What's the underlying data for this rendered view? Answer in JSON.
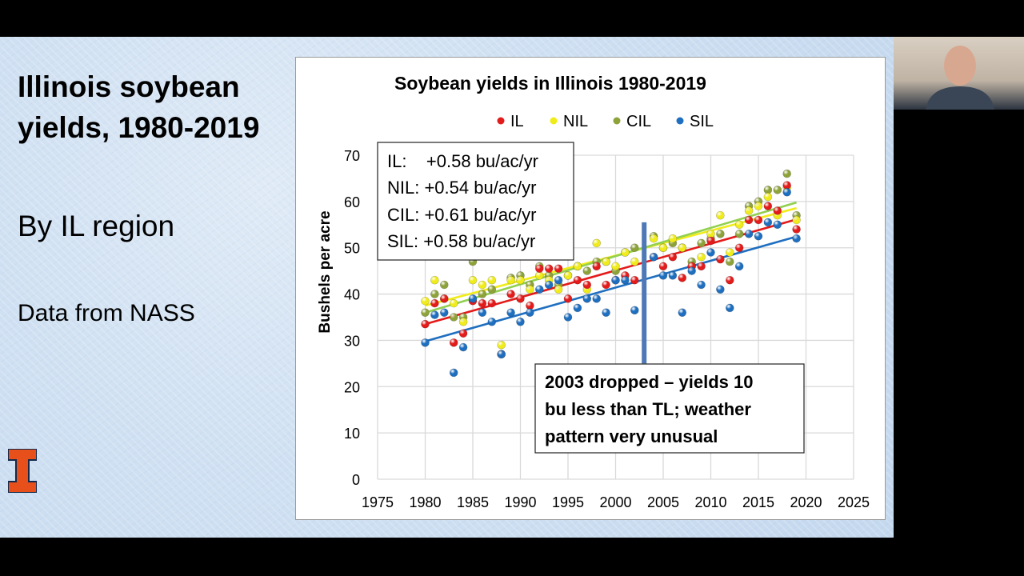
{
  "slide": {
    "title": "Illinois soybean yields, 1980-2019",
    "subtitle": "By IL region",
    "source": "Data from NASS",
    "logo_text": "I"
  },
  "chart_data": {
    "type": "scatter",
    "title": "Soybean yields in Illinois 1980-2019",
    "xlabel": "",
    "ylabel": "Bushels per acre",
    "xlim": [
      1975,
      2025
    ],
    "ylim": [
      0,
      70
    ],
    "xticks": [
      1975,
      1980,
      1985,
      1990,
      1995,
      2000,
      2005,
      2010,
      2015,
      2020,
      2025
    ],
    "yticks": [
      0,
      10,
      20,
      30,
      40,
      50,
      60,
      70
    ],
    "grid": true,
    "legend_position": "top",
    "x": [
      1980,
      1981,
      1982,
      1983,
      1984,
      1985,
      1986,
      1987,
      1988,
      1989,
      1990,
      1991,
      1992,
      1993,
      1994,
      1995,
      1996,
      1997,
      1998,
      1999,
      2000,
      2001,
      2002,
      2003,
      2004,
      2005,
      2006,
      2007,
      2008,
      2009,
      2010,
      2011,
      2012,
      2013,
      2014,
      2015,
      2016,
      2017,
      2018,
      2019
    ],
    "series": [
      {
        "name": "IL",
        "color": "#e31b1b",
        "trend_color": "#e31b1b",
        "trend_start": 33.5,
        "slope": 0.58,
        "values": [
          33.5,
          38,
          39,
          29.5,
          31.5,
          38.5,
          38,
          38,
          27,
          40,
          39,
          37.5,
          45.5,
          45.5,
          45.5,
          39,
          43,
          42,
          46,
          42,
          43,
          44,
          43,
          null,
          48,
          46,
          48,
          43.5,
          46,
          46,
          51.5,
          47.5,
          43,
          50,
          56,
          56,
          59,
          58,
          63.5,
          54
        ]
      },
      {
        "name": "NIL",
        "color": "#f0ec1c",
        "trend_color": "#f0ec1c",
        "trend_start": 37.5,
        "slope": 0.54,
        "values": [
          38.5,
          43,
          39,
          38,
          34,
          43,
          42,
          43,
          29,
          43,
          43,
          41,
          44,
          43,
          41,
          44,
          46,
          41,
          51,
          47,
          46,
          49,
          47,
          null,
          52,
          50,
          52,
          50,
          46,
          48,
          53,
          57,
          49,
          55,
          58,
          59,
          61,
          57,
          63,
          56
        ]
      },
      {
        "name": "CIL",
        "color": "#8ea23a",
        "trend_color": "#92d050",
        "trend_start": 36,
        "slope": 0.61,
        "values": [
          36,
          40,
          42,
          35,
          35,
          47,
          40,
          41,
          27,
          43.5,
          44,
          42,
          46,
          44,
          42,
          44,
          46,
          45,
          47,
          47,
          45,
          49,
          50,
          null,
          52.5,
          50,
          51,
          50,
          47,
          51,
          52,
          53,
          47,
          53,
          59,
          60,
          62.5,
          62.5,
          66,
          57
        ]
      },
      {
        "name": "SIL",
        "color": "#1f6fc0",
        "trend_color": "#1f6fc0",
        "trend_start": 29.8,
        "slope": 0.58,
        "values": [
          29.5,
          35.5,
          36,
          23,
          28.5,
          39,
          36,
          34,
          27,
          36,
          34,
          36,
          41,
          42,
          43,
          35,
          37,
          39,
          39,
          36,
          43,
          43,
          36.5,
          null,
          48,
          44,
          44,
          36,
          45,
          42,
          49,
          41,
          37,
          46,
          53,
          52.5,
          55.5,
          55,
          62,
          52
        ]
      }
    ],
    "trend_box": [
      "IL:    +0.58 bu/ac/yr",
      "NIL: +0.54 bu/ac/yr",
      "CIL:  +0.61 bu/ac/yr",
      "SIL:  +0.58 bu/ac/yr"
    ],
    "annotation": {
      "year": 2003,
      "text_lines": [
        "2003 dropped – yields 10",
        "bu less than TL; weather",
        "pattern very unusual"
      ],
      "marker_color": "#4f79b6"
    }
  }
}
